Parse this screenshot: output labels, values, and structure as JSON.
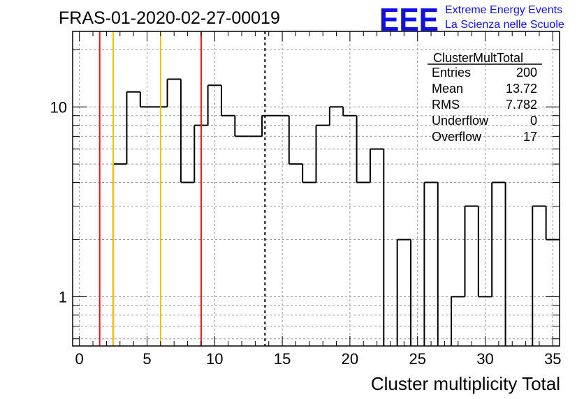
{
  "header": {
    "run_title": "FRAS-01-2020-02-27-00019",
    "logo_text": "EEE",
    "logo_line1": "Extreme Energy Events",
    "logo_line2": "La Scienza nelle Scuole"
  },
  "stats_box": {
    "title": "ClusterMultTotal",
    "rows": [
      {
        "label": "Entries",
        "value": "200"
      },
      {
        "label": "Mean",
        "value": "13.72"
      },
      {
        "label": "RMS",
        "value": "7.782"
      },
      {
        "label": "Underflow",
        "value": "0"
      },
      {
        "label": "Overflow",
        "value": "17"
      }
    ]
  },
  "chart_data": {
    "type": "bar",
    "histogram": true,
    "title": "FRAS-01-2020-02-27-00019",
    "xlabel": "Cluster multiplicity Total",
    "ylabel": "",
    "xlim": [
      -0.5,
      35.5
    ],
    "ylim": [
      0.55,
      25
    ],
    "yscale": "log",
    "grid": true,
    "bin_width": 1,
    "bin_centers": [
      0,
      1,
      2,
      3,
      4,
      5,
      6,
      7,
      8,
      9,
      10,
      11,
      12,
      13,
      14,
      15,
      16,
      17,
      18,
      19,
      20,
      21,
      22,
      23,
      24,
      25,
      26,
      27,
      28,
      29,
      30,
      31,
      32,
      33,
      34,
      35
    ],
    "values": [
      0,
      0,
      0,
      5,
      12,
      10,
      10,
      14,
      4,
      8,
      13,
      9,
      7,
      7,
      9,
      9,
      5,
      4,
      8,
      10,
      9,
      4,
      6,
      0,
      2,
      0,
      4,
      0,
      1,
      3,
      1,
      4,
      0,
      0,
      3,
      2
    ],
    "x_ticks": [
      0,
      5,
      10,
      15,
      20,
      25,
      30,
      35
    ],
    "x_tick_labels": [
      "0",
      "5",
      "10",
      "15",
      "20",
      "25",
      "30",
      "35"
    ],
    "y_ticks": [
      1,
      10
    ],
    "y_tick_labels": [
      "1",
      "10"
    ],
    "vertical_lines": [
      {
        "x": 1.5,
        "color": "#e8141e",
        "style": "solid"
      },
      {
        "x": 2.5,
        "color": "#f0c000",
        "style": "solid"
      },
      {
        "x": 6.0,
        "color": "#f0c000",
        "style": "solid"
      },
      {
        "x": 9.0,
        "color": "#e8141e",
        "style": "solid"
      },
      {
        "x": 13.72,
        "color": "#000000",
        "style": "dashed"
      }
    ]
  }
}
